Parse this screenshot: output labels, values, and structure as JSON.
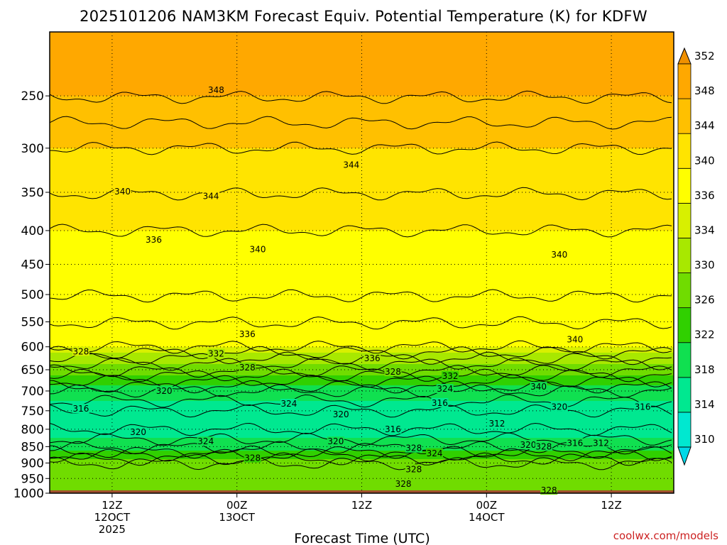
{
  "title": "2025101206 NAM3KM Forecast Equiv. Potential Temperature (K) for KDFW",
  "xlabel": "Forecast Time (UTC)",
  "credit": "coolwx.com/models",
  "chart_data": {
    "type": "heatmap",
    "title": "2025101206 NAM3KM Forecast Equiv. Potential Temperature (K) for KDFW",
    "xlabel": "Forecast Time (UTC)",
    "ylabel": "",
    "y_scale": "log",
    "y_inverted": true,
    "ylim": [
      1000,
      200
    ],
    "yticks": [
      250,
      300,
      350,
      400,
      450,
      500,
      550,
      600,
      650,
      700,
      750,
      800,
      850,
      900,
      950,
      1000
    ],
    "xlim_hours": [
      0,
      60
    ],
    "xticks": [
      {
        "hour": 6,
        "lines": [
          "12Z",
          "12OCT",
          "2025"
        ]
      },
      {
        "hour": 18,
        "lines": [
          "00Z",
          "13OCT"
        ]
      },
      {
        "hour": 30,
        "lines": [
          "12Z"
        ]
      },
      {
        "hour": 42,
        "lines": [
          "00Z",
          "14OCT"
        ]
      },
      {
        "hour": 54,
        "lines": [
          "12Z"
        ]
      }
    ],
    "grid": true,
    "colorbar": {
      "levels": [
        310,
        314,
        318,
        322,
        326,
        330,
        334,
        336,
        340,
        344,
        348,
        352
      ],
      "colors": [
        "#00d8e8",
        "#00e8d0",
        "#00e890",
        "#10e050",
        "#30d000",
        "#70dc00",
        "#a8e800",
        "#d8f000",
        "#ffff00",
        "#ffe400",
        "#ffc000",
        "#ffa800",
        "#f09000"
      ],
      "extend": "both"
    },
    "ground_color": "#a0522d",
    "profile": [
      {
        "p": 1000,
        "theta_e": 330
      },
      {
        "p": 900,
        "theta_e": 328
      },
      {
        "p": 850,
        "theta_e": 320
      },
      {
        "p": 800,
        "theta_e": 316
      },
      {
        "p": 750,
        "theta_e": 316
      },
      {
        "p": 700,
        "theta_e": 320
      },
      {
        "p": 650,
        "theta_e": 328
      },
      {
        "p": 600,
        "theta_e": 336
      },
      {
        "p": 550,
        "theta_e": 336
      },
      {
        "p": 500,
        "theta_e": 338
      },
      {
        "p": 400,
        "theta_e": 340
      },
      {
        "p": 350,
        "theta_e": 342
      },
      {
        "p": 300,
        "theta_e": 344
      },
      {
        "p": 250,
        "theta_e": 348
      },
      {
        "p": 200,
        "theta_e": 350
      }
    ],
    "contour_labels": [
      {
        "text": "348",
        "hour": 16.0,
        "p": 245
      },
      {
        "text": "344",
        "hour": 29.0,
        "p": 318
      },
      {
        "text": "344",
        "hour": 15.5,
        "p": 355
      },
      {
        "text": "340",
        "hour": 7.0,
        "p": 349
      },
      {
        "text": "336",
        "hour": 10.0,
        "p": 413
      },
      {
        "text": "340",
        "hour": 20.0,
        "p": 427
      },
      {
        "text": "340",
        "hour": 49.0,
        "p": 435
      },
      {
        "text": "336",
        "hour": 19.0,
        "p": 574
      },
      {
        "text": "340",
        "hour": 50.5,
        "p": 585
      },
      {
        "text": "328",
        "hour": 3.0,
        "p": 610
      },
      {
        "text": "332",
        "hour": 16.0,
        "p": 615
      },
      {
        "text": "336",
        "hour": 31.0,
        "p": 625
      },
      {
        "text": "328",
        "hour": 19.0,
        "p": 645
      },
      {
        "text": "328",
        "hour": 33.0,
        "p": 655
      },
      {
        "text": "332",
        "hour": 38.5,
        "p": 665
      },
      {
        "text": "340",
        "hour": 47.0,
        "p": 690
      },
      {
        "text": "320",
        "hour": 11.0,
        "p": 700
      },
      {
        "text": "324",
        "hour": 38.0,
        "p": 695
      },
      {
        "text": "324",
        "hour": 23.0,
        "p": 732
      },
      {
        "text": "316",
        "hour": 37.5,
        "p": 730
      },
      {
        "text": "320",
        "hour": 49.0,
        "p": 740
      },
      {
        "text": "316",
        "hour": 57.0,
        "p": 740
      },
      {
        "text": "316",
        "hour": 3.0,
        "p": 745
      },
      {
        "text": "320",
        "hour": 28.0,
        "p": 760
      },
      {
        "text": "312",
        "hour": 43.0,
        "p": 785
      },
      {
        "text": "316",
        "hour": 33.0,
        "p": 800
      },
      {
        "text": "320",
        "hour": 8.5,
        "p": 808
      },
      {
        "text": "324",
        "hour": 15.0,
        "p": 835
      },
      {
        "text": "320",
        "hour": 27.5,
        "p": 835
      },
      {
        "text": "328",
        "hour": 35.0,
        "p": 855
      },
      {
        "text": "324",
        "hour": 37.0,
        "p": 870
      },
      {
        "text": "320",
        "hour": 46.0,
        "p": 845
      },
      {
        "text": "328",
        "hour": 47.5,
        "p": 850
      },
      {
        "text": "316",
        "hour": 50.5,
        "p": 840
      },
      {
        "text": "312",
        "hour": 53.0,
        "p": 840
      },
      {
        "text": "328",
        "hour": 19.5,
        "p": 885
      },
      {
        "text": "328",
        "hour": 35.0,
        "p": 920
      },
      {
        "text": "328",
        "hour": 34.0,
        "p": 968
      },
      {
        "text": "328",
        "hour": 48.0,
        "p": 990
      }
    ]
  }
}
